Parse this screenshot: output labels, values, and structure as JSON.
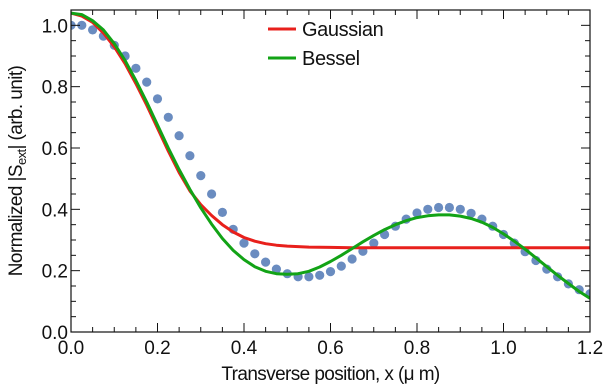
{
  "chart_data": {
    "type": "line",
    "xlabel": "Transverse position, x (μ m)",
    "ylabel_prefix": "Normalized |S",
    "ylabel_sub": "ext",
    "ylabel_suffix": "| (arb. unit)",
    "xlim": [
      0.0,
      1.2
    ],
    "ylim": [
      0.0,
      1.05
    ],
    "x_ticks": [
      "0.0",
      "0.2",
      "0.4",
      "0.6",
      "0.8",
      "1.0",
      "1.2"
    ],
    "y_ticks": [
      "0.0",
      "0.2",
      "0.4",
      "0.6",
      "0.8",
      "1.0"
    ],
    "x_tick_values": [
      0.0,
      0.2,
      0.4,
      0.6,
      0.8,
      1.0,
      1.2
    ],
    "y_tick_values": [
      0.0,
      0.2,
      0.4,
      0.6,
      0.8,
      1.0
    ],
    "grid": false,
    "legend_position": "top-center",
    "series": [
      {
        "name": "Gaussian",
        "type": "line",
        "color": "#e8201c",
        "x": [
          0.0,
          0.025,
          0.05,
          0.075,
          0.1,
          0.125,
          0.15,
          0.175,
          0.2,
          0.225,
          0.25,
          0.275,
          0.3,
          0.325,
          0.35,
          0.375,
          0.4,
          0.425,
          0.45,
          0.475,
          0.5,
          0.55,
          0.6,
          0.65,
          0.7,
          0.75,
          0.8,
          0.9,
          1.0,
          1.1,
          1.2
        ],
        "y": [
          1.04,
          1.03,
          1.01,
          0.975,
          0.93,
          0.875,
          0.81,
          0.74,
          0.665,
          0.59,
          0.52,
          0.46,
          0.415,
          0.38,
          0.35,
          0.326,
          0.308,
          0.296,
          0.288,
          0.283,
          0.28,
          0.277,
          0.276,
          0.275,
          0.275,
          0.275,
          0.275,
          0.275,
          0.275,
          0.275,
          0.275
        ]
      },
      {
        "name": "Bessel",
        "type": "line",
        "color": "#12a316",
        "x": [
          0.0,
          0.025,
          0.05,
          0.075,
          0.1,
          0.125,
          0.15,
          0.175,
          0.2,
          0.225,
          0.25,
          0.275,
          0.3,
          0.325,
          0.35,
          0.375,
          0.4,
          0.425,
          0.45,
          0.475,
          0.5,
          0.525,
          0.55,
          0.575,
          0.6,
          0.625,
          0.65,
          0.675,
          0.7,
          0.725,
          0.75,
          0.775,
          0.8,
          0.825,
          0.85,
          0.875,
          0.9,
          0.925,
          0.95,
          0.975,
          1.0,
          1.025,
          1.05,
          1.075,
          1.1,
          1.125,
          1.15,
          1.175,
          1.2
        ],
        "y": [
          1.04,
          1.035,
          1.015,
          0.985,
          0.94,
          0.885,
          0.82,
          0.75,
          0.675,
          0.6,
          0.53,
          0.465,
          0.405,
          0.352,
          0.305,
          0.266,
          0.236,
          0.213,
          0.198,
          0.19,
          0.188,
          0.19,
          0.198,
          0.212,
          0.23,
          0.25,
          0.272,
          0.294,
          0.315,
          0.334,
          0.35,
          0.363,
          0.373,
          0.379,
          0.382,
          0.382,
          0.378,
          0.37,
          0.358,
          0.341,
          0.32,
          0.296,
          0.27,
          0.242,
          0.213,
          0.185,
          0.158,
          0.132,
          0.11
        ]
      },
      {
        "name": "",
        "type": "scatter",
        "color": "#6a8cc0",
        "x": [
          0.0,
          0.025,
          0.05,
          0.075,
          0.1,
          0.125,
          0.15,
          0.175,
          0.2,
          0.225,
          0.25,
          0.275,
          0.3,
          0.325,
          0.35,
          0.375,
          0.4,
          0.425,
          0.45,
          0.475,
          0.5,
          0.525,
          0.55,
          0.575,
          0.6,
          0.625,
          0.65,
          0.675,
          0.7,
          0.725,
          0.75,
          0.775,
          0.8,
          0.825,
          0.85,
          0.875,
          0.9,
          0.925,
          0.95,
          0.975,
          1.0,
          1.025,
          1.05,
          1.075,
          1.1,
          1.125,
          1.15,
          1.175,
          1.2
        ],
        "y": [
          1.0,
          1.0,
          0.985,
          0.965,
          0.935,
          0.9,
          0.86,
          0.815,
          0.76,
          0.7,
          0.64,
          0.575,
          0.51,
          0.45,
          0.39,
          0.335,
          0.29,
          0.255,
          0.228,
          0.205,
          0.19,
          0.18,
          0.18,
          0.185,
          0.197,
          0.215,
          0.238,
          0.263,
          0.29,
          0.318,
          0.345,
          0.368,
          0.388,
          0.4,
          0.406,
          0.406,
          0.4,
          0.387,
          0.368,
          0.345,
          0.318,
          0.29,
          0.262,
          0.233,
          0.205,
          0.18,
          0.157,
          0.138,
          0.125
        ]
      }
    ]
  }
}
